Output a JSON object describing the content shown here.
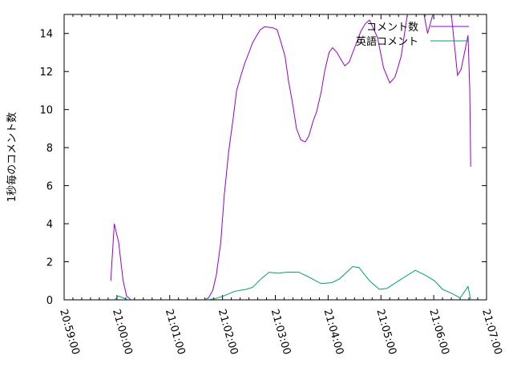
{
  "chart_data": {
    "type": "line",
    "title": "",
    "xlabel": "",
    "ylabel": "1秒毎のコメント数",
    "xlim": [
      "20:59:00",
      "21:07:00"
    ],
    "ylim": [
      0,
      15
    ],
    "x_ticks": [
      "20:59:00",
      "21:00:00",
      "21:01:00",
      "21:02:00",
      "21:03:00",
      "21:04:00",
      "21:05:00",
      "21:06:00",
      "21:07:00"
    ],
    "y_ticks": [
      0,
      2,
      4,
      6,
      8,
      10,
      12,
      14
    ],
    "grid": false,
    "legend_position": "top-right",
    "series": [
      {
        "name": "コメント数",
        "color": "#9400d3",
        "segments": [
          [
            [
              "20:59:53",
              1.0
            ],
            [
              "20:59:57",
              4.0
            ],
            [
              "21:00:02",
              3.0
            ],
            [
              "21:00:07",
              1.0
            ],
            [
              "21:00:11",
              0.2
            ],
            [
              "21:00:16",
              0.0
            ]
          ],
          [
            [
              "21:01:40",
              0.0
            ],
            [
              "21:01:44",
              0.1
            ],
            [
              "21:01:49",
              0.5
            ],
            [
              "21:01:53",
              1.3
            ],
            [
              "21:01:58",
              3.0
            ],
            [
              "21:02:02",
              5.5
            ],
            [
              "21:02:07",
              7.8
            ],
            [
              "21:02:12",
              9.5
            ],
            [
              "21:02:16",
              11.0
            ],
            [
              "21:02:21",
              11.8
            ],
            [
              "21:02:25",
              12.4
            ],
            [
              "21:02:30",
              13.0
            ],
            [
              "21:02:34",
              13.5
            ],
            [
              "21:02:39",
              13.9
            ],
            [
              "21:02:43",
              14.2
            ],
            [
              "21:02:48",
              14.35
            ],
            [
              "21:02:57",
              14.3
            ],
            [
              "21:03:02",
              14.2
            ],
            [
              "21:03:06",
              13.6
            ],
            [
              "21:03:11",
              12.8
            ],
            [
              "21:03:15",
              11.5
            ],
            [
              "21:03:20",
              10.2
            ],
            [
              "21:03:24",
              9.0
            ],
            [
              "21:03:29",
              8.4
            ],
            [
              "21:03:34",
              8.3
            ],
            [
              "21:03:38",
              8.6
            ],
            [
              "21:03:43",
              9.4
            ],
            [
              "21:03:47",
              9.9
            ],
            [
              "21:03:52",
              10.9
            ],
            [
              "21:03:56",
              12.0
            ],
            [
              "21:04:01",
              13.0
            ],
            [
              "21:04:05",
              13.25
            ],
            [
              "21:04:10",
              13.0
            ],
            [
              "21:04:15",
              12.6
            ],
            [
              "21:04:19",
              12.3
            ],
            [
              "21:04:24",
              12.5
            ],
            [
              "21:04:28",
              13.0
            ],
            [
              "21:04:33",
              13.6
            ],
            [
              "21:04:37",
              14.1
            ],
            [
              "21:04:42",
              14.5
            ],
            [
              "21:04:47",
              14.7
            ],
            [
              "21:04:56",
              13.8
            ],
            [
              "21:05:03",
              12.2
            ],
            [
              "21:05:10",
              11.4
            ],
            [
              "21:05:16",
              11.7
            ],
            [
              "21:05:23",
              12.8
            ],
            [
              "21:05:30",
              15.0
            ],
            [
              "21:05:39",
              16.0
            ],
            [
              "21:05:49",
              15.0
            ],
            [
              "21:05:53",
              14.0
            ],
            [
              "21:05:59",
              15.0
            ],
            [
              "21:06:09",
              16.0
            ],
            [
              "21:06:20",
              15.0
            ],
            [
              "21:06:27",
              11.8
            ],
            [
              "21:06:31",
              12.1
            ],
            [
              "21:06:39",
              13.9
            ],
            [
              "21:06:41",
              11.0
            ],
            [
              "21:06:42",
              7.0
            ]
          ]
        ]
      },
      {
        "name": "英語コメント",
        "color": "#009e73",
        "segments": [
          [
            [
              "20:59:57",
              0.0
            ],
            [
              "21:00:02",
              0.2
            ],
            [
              "21:00:07",
              0.1
            ],
            [
              "21:00:13",
              0.0
            ]
          ],
          [
            [
              "21:01:41",
              0.0
            ],
            [
              "21:01:51",
              0.05
            ],
            [
              "21:02:01",
              0.2
            ],
            [
              "21:02:14",
              0.45
            ],
            [
              "21:02:27",
              0.55
            ],
            [
              "21:02:34",
              0.65
            ],
            [
              "21:02:45",
              1.15
            ],
            [
              "21:02:53",
              1.45
            ],
            [
              "21:03:03",
              1.4
            ],
            [
              "21:03:13",
              1.45
            ],
            [
              "21:03:27",
              1.45
            ],
            [
              "21:03:40",
              1.15
            ],
            [
              "21:03:52",
              0.85
            ],
            [
              "21:04:04",
              0.9
            ],
            [
              "21:04:13",
              1.1
            ],
            [
              "21:04:28",
              1.75
            ],
            [
              "21:04:35",
              1.7
            ],
            [
              "21:04:47",
              1.0
            ],
            [
              "21:04:58",
              0.55
            ],
            [
              "21:05:07",
              0.6
            ],
            [
              "21:05:20",
              1.0
            ],
            [
              "21:05:39",
              1.55
            ],
            [
              "21:05:50",
              1.3
            ],
            [
              "21:06:01",
              1.0
            ],
            [
              "21:06:10",
              0.55
            ],
            [
              "21:06:20",
              0.35
            ],
            [
              "21:06:30",
              0.1
            ],
            [
              "21:06:39",
              0.7
            ],
            [
              "21:06:42",
              0.0
            ]
          ]
        ]
      }
    ]
  }
}
